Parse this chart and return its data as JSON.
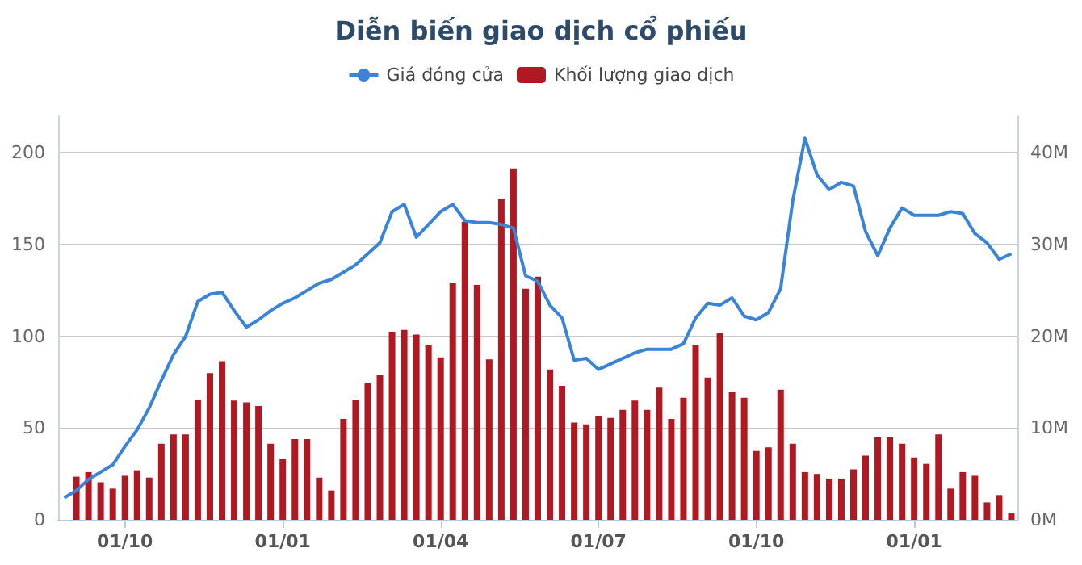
{
  "chart_data": {
    "type": "line",
    "title": "Diễn biến giao dịch cổ phiếu",
    "categories": [
      null,
      null,
      null,
      null,
      null,
      "01/10",
      null,
      null,
      null,
      null,
      null,
      null,
      null,
      null,
      null,
      null,
      null,
      null,
      "01/01",
      null,
      null,
      null,
      null,
      null,
      null,
      null,
      null,
      null,
      null,
      null,
      null,
      "01/04",
      null,
      null,
      null,
      null,
      null,
      null,
      null,
      null,
      null,
      null,
      null,
      null,
      "01/07",
      null,
      null,
      null,
      null,
      null,
      null,
      null,
      null,
      null,
      null,
      null,
      null,
      "01/10",
      null,
      null,
      null,
      null,
      null,
      null,
      null,
      null,
      null,
      null,
      null,
      null,
      "01/01",
      null,
      null,
      null,
      null,
      null,
      null,
      null,
      null
    ],
    "series": [
      {
        "name": "Giá đóng cửa",
        "color": "#3a84d8",
        "values": [
          12,
          16,
          22,
          26,
          30,
          40,
          49,
          61,
          76,
          90,
          100,
          119,
          123,
          124,
          114,
          105,
          109,
          114,
          118,
          121,
          125,
          129,
          131,
          135,
          139,
          145,
          151,
          168,
          172,
          154,
          161,
          168,
          172,
          163,
          162,
          162,
          161,
          159,
          133,
          130,
          117,
          110,
          87,
          88,
          82,
          85,
          88,
          91,
          93,
          93,
          93,
          96,
          110,
          118,
          117,
          121,
          111,
          109,
          113,
          126,
          174,
          208,
          188,
          180,
          184,
          182,
          157,
          144,
          159,
          170,
          166,
          166,
          166,
          168,
          167,
          156,
          151,
          142,
          145
        ]
      },
      {
        "name": "Khối lượng giao dịch",
        "type": "bar",
        "axis": "y2",
        "color": "#b01822",
        "values": [
          null,
          4.7,
          5.2,
          4.1,
          3.4,
          4.8,
          5.4,
          4.6,
          8.3,
          9.3,
          9.3,
          13.1,
          16.0,
          17.3,
          13.0,
          12.8,
          12.4,
          8.3,
          6.6,
          8.8,
          8.8,
          4.6,
          3.2,
          11.0,
          13.1,
          14.9,
          15.8,
          20.5,
          20.7,
          20.2,
          19.1,
          17.7,
          25.8,
          32.5,
          25.6,
          17.5,
          35.0,
          38.3,
          25.2,
          26.5,
          16.4,
          14.6,
          10.6,
          10.4,
          11.3,
          11.1,
          12.0,
          13.0,
          12.0,
          14.4,
          11.0,
          13.3,
          19.1,
          15.5,
          20.4,
          13.9,
          13.3,
          7.5,
          7.9,
          14.2,
          8.3,
          5.2,
          5.0,
          4.5,
          4.5,
          5.5,
          7.0,
          9.0,
          9.0,
          8.3,
          6.8,
          6.1,
          9.3,
          3.4,
          5.2,
          4.8,
          1.9,
          2.7,
          0.7
        ]
      }
    ],
    "ylim": [
      0,
      220
    ],
    "yticks": [
      0,
      50,
      100,
      150,
      200
    ],
    "y2lim": [
      0,
      44
    ],
    "y2ticks": [
      {
        "value": 0,
        "label": "0M"
      },
      {
        "value": 10,
        "label": "10M"
      },
      {
        "value": 20,
        "label": "20M"
      },
      {
        "value": 30,
        "label": "30M"
      },
      {
        "value": 40,
        "label": "40M"
      }
    ],
    "grid": "y",
    "legend": "top"
  }
}
